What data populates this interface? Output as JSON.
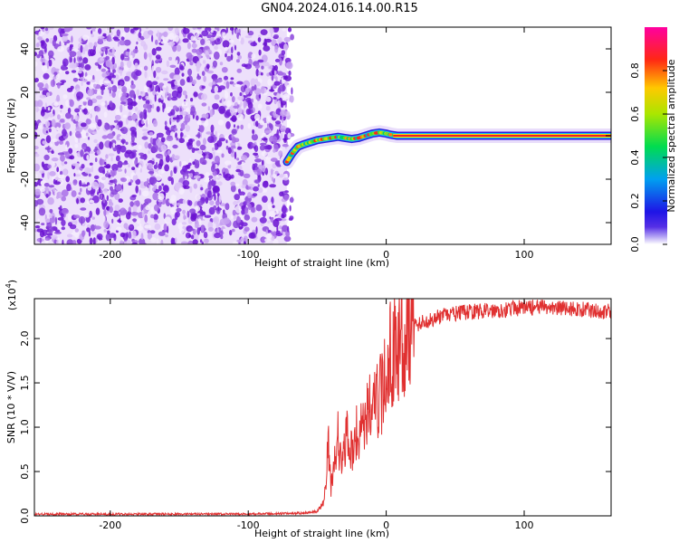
{
  "page_title": "GN04.2024.016.14.00.R15",
  "chart_data": [
    {
      "type": "heatmap",
      "title": "GN04.2024.016.14.00.R15",
      "xlabel": "Height of straight line (km)",
      "ylabel": "Frequency (Hz)",
      "xlim": [
        -255,
        163
      ],
      "ylim": [
        -50,
        50
      ],
      "x_ticks": [
        -200,
        -100,
        0,
        100
      ],
      "y_ticks": [
        -40,
        -20,
        0,
        20,
        40
      ],
      "noise_region_x": [
        -255,
        -72
      ],
      "ridge": {
        "x": [
          -72,
          -68,
          -64,
          -60,
          -55,
          -50,
          -45,
          -40,
          -35,
          -30,
          -25,
          -20,
          -15,
          -10,
          -5,
          0,
          3,
          8,
          20,
          60,
          100,
          163
        ],
        "y": [
          -12,
          -8,
          -5,
          -4,
          -3,
          -2,
          -1.5,
          -1,
          -0.5,
          -1,
          -1.5,
          -1,
          0,
          1,
          1.5,
          1,
          0.5,
          0,
          0,
          0,
          0,
          0
        ]
      },
      "colorbar": {
        "label": "Normalized spectral amplitude",
        "ticks": [
          "0.0",
          "0.2",
          "0.4",
          "0.6",
          "0.8"
        ],
        "range": [
          0,
          1
        ]
      },
      "grid": false,
      "legend": "colorbar right"
    },
    {
      "type": "line",
      "xlabel": "Height of straight line (km)",
      "ylabel": "SNR (10 * V/V)",
      "scale_label": "(x10",
      "scale_exp": "4",
      "xlim": [
        -255,
        163
      ],
      "ylim": [
        0,
        2.45
      ],
      "x_ticks": [
        -200,
        -100,
        0,
        100
      ],
      "y_ticks": [
        "0.0",
        "0.5",
        "1.0",
        "1.5",
        "2.0"
      ],
      "color": "#e03030",
      "series": [
        {
          "x": [
            -255,
            -200,
            -100,
            -60,
            -50,
            -45,
            -42,
            -40,
            -38,
            -35,
            -32,
            -30,
            -28,
            -25,
            -22,
            -20,
            -18,
            -15,
            -12,
            -10,
            -8,
            -5,
            -2,
            0,
            2,
            5,
            8,
            10,
            15,
            20,
            30,
            40,
            50,
            60,
            80,
            100,
            120,
            140,
            163
          ],
          "values": [
            0.02,
            0.02,
            0.02,
            0.03,
            0.05,
            0.15,
            0.8,
            0.3,
            0.6,
            0.9,
            0.5,
            0.8,
            0.9,
            0.7,
            0.95,
            0.85,
            1.1,
            1.0,
            1.3,
            1.25,
            1.2,
            1.4,
            1.35,
            1.7,
            1.8,
            1.85,
            1.95,
            2.0,
            2.1,
            2.15,
            2.2,
            2.25,
            2.28,
            2.3,
            2.32,
            2.35,
            2.35,
            2.33,
            2.3
          ]
        }
      ],
      "grid": false
    }
  ]
}
